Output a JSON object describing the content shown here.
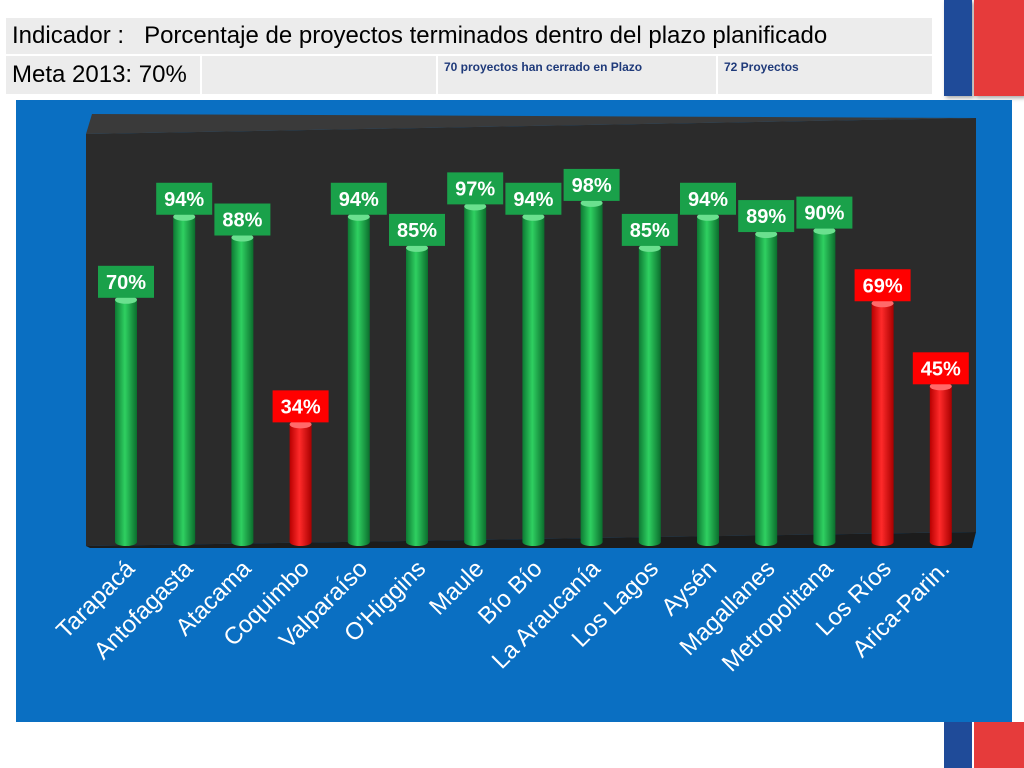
{
  "header": {
    "indicator_label": "Indicador :",
    "indicator_text": "Porcentaje de proyectos terminados dentro del plazo planificado",
    "meta": "Meta 2013: 70%",
    "closed_note": "70 proyectos han cerrado en Plazo",
    "total_note": "72 Proyectos"
  },
  "colors": {
    "green": "#1aa14a",
    "red": "#ff0000",
    "panel_blue": "#0a6fc2",
    "plot_back": "#2b2b2b",
    "header_cell": "#ececec",
    "note_text": "#1f3a7a"
  },
  "chart_data": {
    "type": "bar",
    "title": "",
    "xlabel": "",
    "ylabel": "",
    "ylim": [
      0,
      100
    ],
    "grid": false,
    "categories": [
      "Tarapacá",
      "Antofagasta",
      "Atacama",
      "Coquimbo",
      "Valparaíso",
      "O'Higgins",
      "Maule",
      "Bío Bío",
      "La Araucanía",
      "Los Lagos",
      "Aysén",
      "Magallanes",
      "Metropolitana",
      "Los Ríos",
      "Arica-Parin."
    ],
    "values": [
      70,
      94,
      88,
      34,
      94,
      85,
      97,
      94,
      98,
      85,
      94,
      89,
      90,
      69,
      45
    ],
    "data_labels": [
      "70%",
      "94%",
      "88%",
      "34%",
      "94%",
      "85%",
      "97%",
      "94%",
      "98%",
      "85%",
      "94%",
      "89%",
      "90%",
      "69%",
      "45%"
    ],
    "bar_colors": [
      "green",
      "green",
      "green",
      "red",
      "green",
      "green",
      "green",
      "green",
      "green",
      "green",
      "green",
      "green",
      "green",
      "red",
      "red"
    ]
  }
}
